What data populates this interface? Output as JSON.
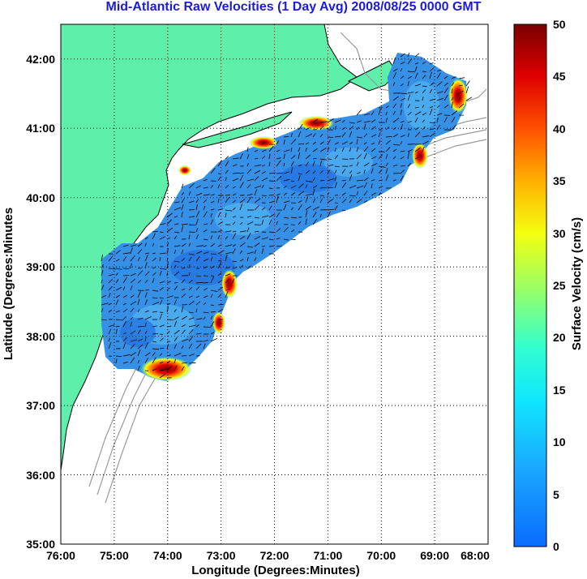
{
  "title": "Mid-Atlantic Raw Velocities (1 Day Avg) 2008/08/25 0000 GMT",
  "xlabel": "Longitude (Degrees:Minutes)",
  "ylabel": "Latitude (Degrees:Minutes",
  "colorbar_label": "Surface Velocity (cm/s)",
  "x_ticks": [
    "76:00",
    "75:00",
    "74:00",
    "73:00",
    "72:00",
    "71:00",
    "70:00",
    "69:00",
    "68:00"
  ],
  "y_ticks": [
    "42:00",
    "41:00",
    "40:00",
    "39:00",
    "38:00",
    "37:00",
    "36:00",
    "35:00"
  ],
  "colorbar_ticks": [
    "50",
    "45",
    "40",
    "35",
    "30",
    "25",
    "20",
    "15",
    "10",
    "5",
    "0"
  ],
  "colors": {
    "land": "#5ef0aa",
    "field": "#2f8fe8",
    "title": "#1b1be0",
    "bathymetry": "#9a9a9a"
  },
  "map_data": {
    "lon_range": [
      -76,
      -68
    ],
    "lat_range": [
      35,
      42.5
    ],
    "velocity_range_cm_s": [
      0,
      50
    ],
    "high_velocity_zones": [
      {
        "lon": -73.9,
        "lat": 37.6,
        "speed": 45
      },
      {
        "lon": -68.6,
        "lat": 41.3,
        "speed": 48
      },
      {
        "lon": -69.0,
        "lat": 40.6,
        "speed": 42
      },
      {
        "lon": -71.0,
        "lat": 41.05,
        "speed": 35
      },
      {
        "lon": -72.0,
        "lat": 40.8,
        "speed": 32
      },
      {
        "lon": -72.8,
        "lat": 38.9,
        "speed": 27
      },
      {
        "lon": -73.0,
        "lat": 38.3,
        "speed": 28
      }
    ]
  }
}
